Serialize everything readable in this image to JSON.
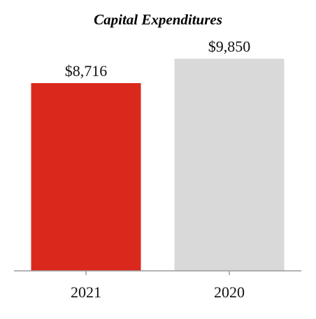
{
  "chart_data": {
    "type": "bar",
    "title": "Capital Expenditures",
    "xlabel": "",
    "ylabel": "",
    "categories": [
      "2021",
      "2020"
    ],
    "values": [
      8716,
      9850
    ],
    "data_labels": [
      "$8,716",
      "$9,850"
    ],
    "colors": [
      "#da291c",
      "#d9d9d9"
    ],
    "ylim": [
      0,
      10500
    ],
    "grid": false,
    "legend": "none"
  }
}
